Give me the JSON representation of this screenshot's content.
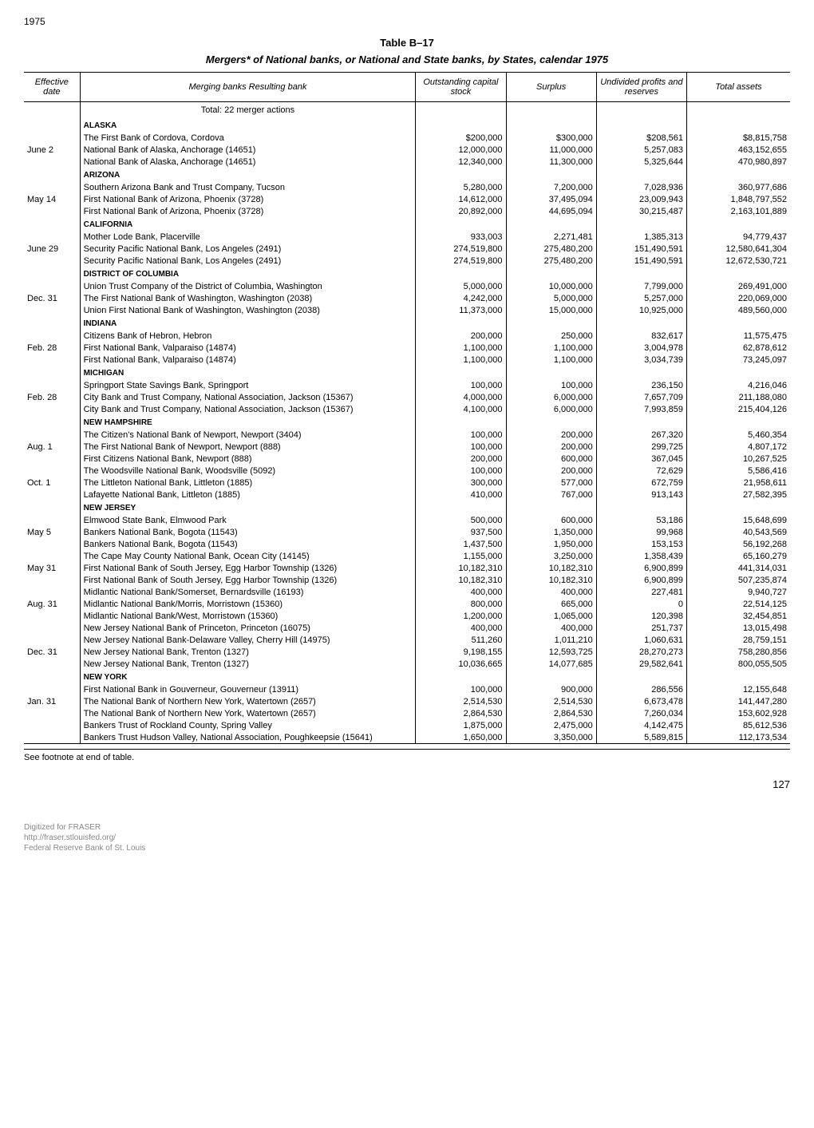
{
  "page_year": "1975",
  "table_label": "Table B–17",
  "table_title": "Mergers* of National banks, or National and State banks, by States, calendar 1975",
  "columns": {
    "date": "Effective date",
    "desc": "Merging banks\nResulting bank",
    "cap": "Outstanding capital stock",
    "surplus": "Surplus",
    "undiv": "Undivided profits and reserves",
    "assets": "Total assets"
  },
  "total_line": "Total: 22 merger actions",
  "sections": [
    {
      "state": "ALASKA",
      "groups": [
        {
          "date": "June   2",
          "rows": [
            {
              "desc": "The First Bank of Cordova, Cordova",
              "cap": "$200,000",
              "surplus": "$300,000",
              "undiv": "$208,561",
              "assets": "$8,815,758"
            },
            {
              "desc": "National Bank of Alaska, Anchorage (14651)",
              "cap": "12,000,000",
              "surplus": "11,000,000",
              "undiv": "5,257,083",
              "assets": "463,152,655"
            },
            {
              "desc": "National Bank of Alaska, Anchorage (14651)",
              "cap": "12,340,000",
              "surplus": "11,300,000",
              "undiv": "5,325,644",
              "assets": "470,980,897"
            }
          ]
        }
      ]
    },
    {
      "state": "ARIZONA",
      "groups": [
        {
          "date": "May   14",
          "rows": [
            {
              "desc": "Southern Arizona Bank and Trust Company, Tucson",
              "cap": "5,280,000",
              "surplus": "7,200,000",
              "undiv": "7,028,936",
              "assets": "360,977,686"
            },
            {
              "desc": "First National Bank of Arizona, Phoenix (3728)",
              "cap": "14,612,000",
              "surplus": "37,495,094",
              "undiv": "23,009,943",
              "assets": "1,848,797,552"
            },
            {
              "desc": "First National Bank of Arizona, Phoenix (3728)",
              "cap": "20,892,000",
              "surplus": "44,695,094",
              "undiv": "30,215,487",
              "assets": "2,163,101,889"
            }
          ]
        }
      ]
    },
    {
      "state": "CALIFORNIA",
      "groups": [
        {
          "date": "June  29",
          "rows": [
            {
              "desc": "Mother Lode Bank, Placerville",
              "cap": "933,003",
              "surplus": "2,271,481",
              "undiv": "1,385,313",
              "assets": "94,779,437"
            },
            {
              "desc": "Security Pacific National Bank, Los Angeles (2491)",
              "cap": "274,519,800",
              "surplus": "275,480,200",
              "undiv": "151,490,591",
              "assets": "12,580,641,304"
            },
            {
              "desc": "Security Pacific National Bank, Los Angeles (2491)",
              "cap": "274,519,800",
              "surplus": "275,480,200",
              "undiv": "151,490,591",
              "assets": "12,672,530,721"
            }
          ]
        }
      ]
    },
    {
      "state": "DISTRICT OF COLUMBIA",
      "groups": [
        {
          "date": "Dec.  31",
          "rows": [
            {
              "desc": "Union Trust Company of the District of Columbia, Washington",
              "cap": "5,000,000",
              "surplus": "10,000,000",
              "undiv": "7,799,000",
              "assets": "269,491,000"
            },
            {
              "desc": "The First National Bank of Washington, Washington (2038)",
              "cap": "4,242,000",
              "surplus": "5,000,000",
              "undiv": "5,257,000",
              "assets": "220,069,000"
            },
            {
              "desc": "Union First National Bank of Washington, Washington (2038)",
              "cap": "11,373,000",
              "surplus": "15,000,000",
              "undiv": "10,925,000",
              "assets": "489,560,000"
            }
          ]
        }
      ]
    },
    {
      "state": "INDIANA",
      "groups": [
        {
          "date": "Feb.  28",
          "rows": [
            {
              "desc": "Citizens Bank of Hebron, Hebron",
              "cap": "200,000",
              "surplus": "250,000",
              "undiv": "832,617",
              "assets": "11,575,475"
            },
            {
              "desc": "First National Bank, Valparaiso (14874)",
              "cap": "1,100,000",
              "surplus": "1,100,000",
              "undiv": "3,004,978",
              "assets": "62,878,612"
            },
            {
              "desc": "First National Bank, Valparaiso (14874)",
              "cap": "1,100,000",
              "surplus": "1,100,000",
              "undiv": "3,034,739",
              "assets": "73,245,097"
            }
          ]
        }
      ]
    },
    {
      "state": "MICHIGAN",
      "groups": [
        {
          "date": "Feb.  28",
          "rows": [
            {
              "desc": "Springport State Savings Bank, Springport",
              "cap": "100,000",
              "surplus": "100,000",
              "undiv": "236,150",
              "assets": "4,216,046"
            },
            {
              "desc": "City Bank and Trust Company, National Association, Jackson (15367)",
              "cap": "4,000,000",
              "surplus": "6,000,000",
              "undiv": "7,657,709",
              "assets": "211,188,080"
            },
            {
              "desc": "City Bank and Trust Company, National Association, Jackson (15367)",
              "cap": "4,100,000",
              "surplus": "6,000,000",
              "undiv": "7,993,859",
              "assets": "215,404,126"
            }
          ]
        }
      ]
    },
    {
      "state": "NEW HAMPSHIRE",
      "groups": [
        {
          "date": "Aug.   1",
          "rows": [
            {
              "desc": "The Citizen's National Bank of Newport, Newport (3404)",
              "cap": "100,000",
              "surplus": "200,000",
              "undiv": "267,320",
              "assets": "5,460,354"
            },
            {
              "desc": "The First National Bank of Newport, Newport (888)",
              "cap": "100,000",
              "surplus": "200,000",
              "undiv": "299,725",
              "assets": "4,807,172"
            },
            {
              "desc": "First Citizens National Bank, Newport (888)",
              "cap": "200,000",
              "surplus": "600,000",
              "undiv": "367,045",
              "assets": "10,267,525"
            }
          ]
        },
        {
          "date": "Oct.    1",
          "rows": [
            {
              "desc": "The Woodsville National Bank, Woodsville (5092)",
              "cap": "100,000",
              "surplus": "200,000",
              "undiv": "72,629",
              "assets": "5,586,416"
            },
            {
              "desc": "The Littleton National Bank, Littleton (1885)",
              "cap": "300,000",
              "surplus": "577,000",
              "undiv": "672,759",
              "assets": "21,958,611"
            },
            {
              "desc": "Lafayette National Bank, Littleton (1885)",
              "cap": "410,000",
              "surplus": "767,000",
              "undiv": "913,143",
              "assets": "27,582,395"
            }
          ]
        }
      ]
    },
    {
      "state": "NEW JERSEY",
      "groups": [
        {
          "date": "May    5",
          "rows": [
            {
              "desc": "Elmwood State Bank, Elmwood Park",
              "cap": "500,000",
              "surplus": "600,000",
              "undiv": "53,186",
              "assets": "15,648,699"
            },
            {
              "desc": "Bankers National Bank, Bogota (11543)",
              "cap": "937,500",
              "surplus": "1,350,000",
              "undiv": "99,968",
              "assets": "40,543,569"
            },
            {
              "desc": "Bankers National Bank, Bogota (11543)",
              "cap": "1,437,500",
              "surplus": "1,950,000",
              "undiv": "153,153",
              "assets": "56,192,268"
            }
          ]
        },
        {
          "date": "May   31",
          "rows": [
            {
              "desc": "The Cape May County National Bank, Ocean City (14145)",
              "cap": "1,155,000",
              "surplus": "3,250,000",
              "undiv": "1,358,439",
              "assets": "65,160,279"
            },
            {
              "desc": "First National Bank of South Jersey, Egg Harbor Township (1326)",
              "cap": "10,182,310",
              "surplus": "10,182,310",
              "undiv": "6,900,899",
              "assets": "441,314,031"
            },
            {
              "desc": "First National Bank of South Jersey, Egg Harbor Township (1326)",
              "cap": "10,182,310",
              "surplus": "10,182,310",
              "undiv": "6,900,899",
              "assets": "507,235,874"
            }
          ]
        },
        {
          "date": "Aug.  31",
          "rows": [
            {
              "desc": "Midlantic National Bank/Somerset, Bernardsville (16193)",
              "cap": "400,000",
              "surplus": "400,000",
              "undiv": "227,481",
              "assets": "9,940,727"
            },
            {
              "desc": "Midlantic National Bank/Morris, Morristown (15360)",
              "cap": "800,000",
              "surplus": "665,000",
              "undiv": "0",
              "assets": "22,514,125"
            },
            {
              "desc": "Midlantic National Bank/West, Morristown (15360)",
              "cap": "1,200,000",
              "surplus": "1,065,000",
              "undiv": "120,398",
              "assets": "32,454,851"
            }
          ]
        },
        {
          "date": "Dec.  31",
          "rows": [
            {
              "desc": "New Jersey National Bank of Princeton, Princeton (16075)",
              "cap": "400,000",
              "surplus": "400,000",
              "undiv": "251,737",
              "assets": "13,015,498"
            },
            {
              "desc": "New Jersey National Bank-Delaware Valley, Cherry Hill (14975)",
              "cap": "511,260",
              "surplus": "1,011,210",
              "undiv": "1,060,631",
              "assets": "28,759,151"
            },
            {
              "desc": "New Jersey National Bank, Trenton (1327)",
              "cap": "9,198,155",
              "surplus": "12,593,725",
              "undiv": "28,270,273",
              "assets": "758,280,856"
            },
            {
              "desc": "New Jersey National Bank, Trenton (1327)",
              "cap": "10,036,665",
              "surplus": "14,077,685",
              "undiv": "29,582,641",
              "assets": "800,055,505"
            }
          ]
        }
      ]
    },
    {
      "state": "NEW YORK",
      "groups": [
        {
          "date": "Jan.   31",
          "rows": [
            {
              "desc": "First National Bank in Gouverneur, Gouverneur (13911)",
              "cap": "100,000",
              "surplus": "900,000",
              "undiv": "286,556",
              "assets": "12,155,648"
            },
            {
              "desc": "The National Bank of Northern New York, Watertown (2657)",
              "cap": "2,514,530",
              "surplus": "2,514,530",
              "undiv": "6,673,478",
              "assets": "141,447,280"
            },
            {
              "desc": "The National Bank of Northern New York, Watertown (2657)",
              "cap": "2,864,530",
              "surplus": "2,864,530",
              "undiv": "7,260,034",
              "assets": "153,602,928"
            }
          ]
        },
        {
          "date": "",
          "rows": [
            {
              "desc": "Bankers Trust of Rockland County, Spring Valley",
              "cap": "1,875,000",
              "surplus": "2,475,000",
              "undiv": "4,142,475",
              "assets": "85,612,536"
            },
            {
              "desc": "Bankers Trust Hudson Valley, National Association, Poughkeepsie (15641)",
              "cap": "1,650,000",
              "surplus": "3,350,000",
              "undiv": "5,589,815",
              "assets": "112,173,534"
            }
          ]
        }
      ]
    }
  ],
  "footnote": "See footnote at end of table.",
  "page_num": "127",
  "watermark": [
    "Digitized for FRASER",
    "http://fraser.stlouisfed.org/",
    "Federal Reserve Bank of St. Louis"
  ]
}
